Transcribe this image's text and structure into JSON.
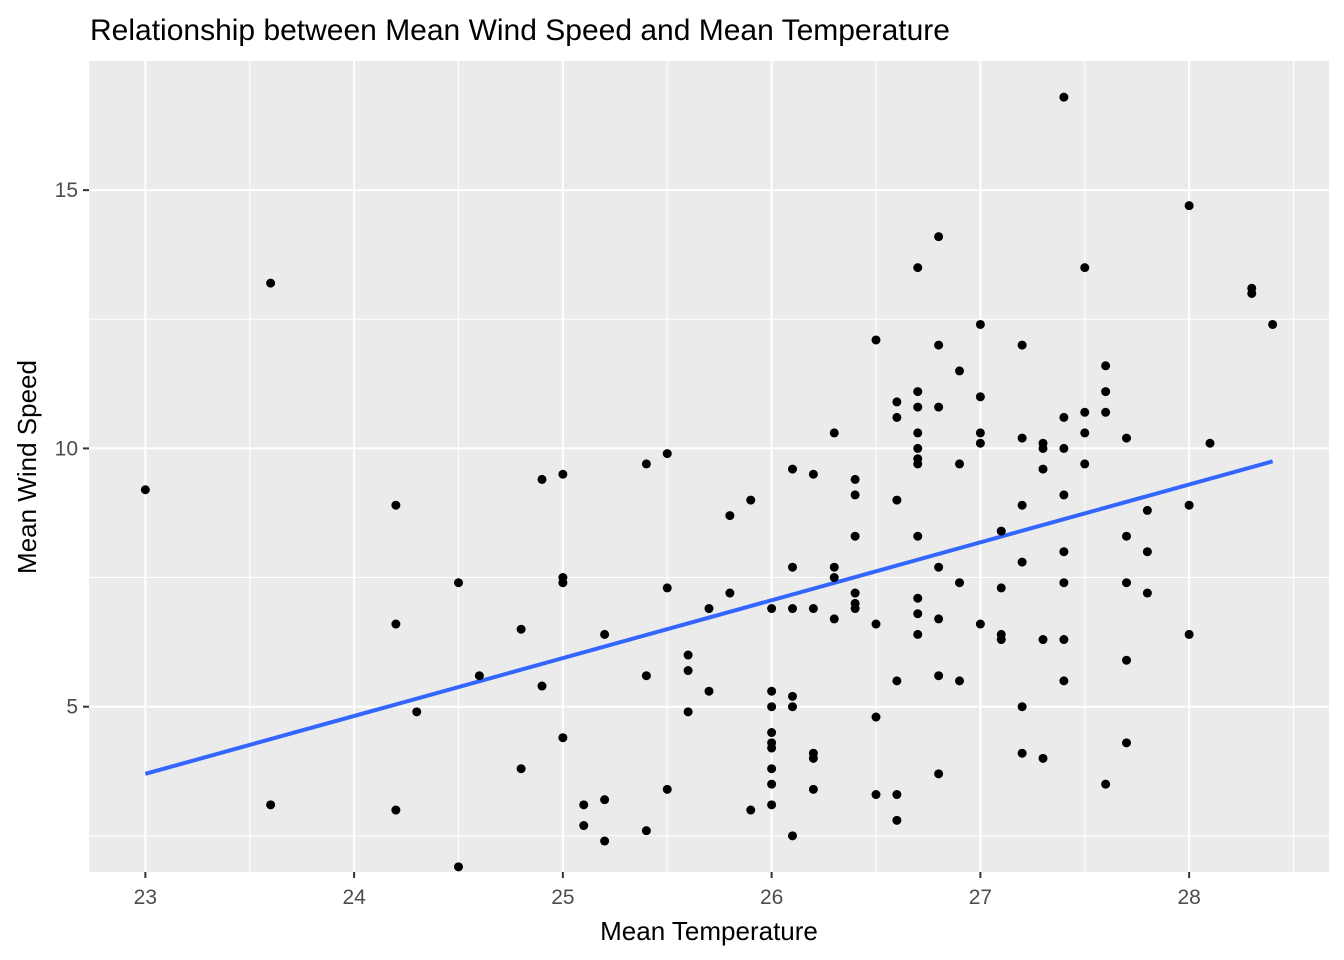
{
  "chart_data": {
    "type": "scatter",
    "title": "Relationship between Mean Wind Speed and Mean Temperature",
    "xlabel": "Mean Temperature",
    "ylabel": "Mean Wind Speed",
    "xlim": [
      22.73,
      28.67
    ],
    "ylim": [
      1.8,
      17.5
    ],
    "x_ticks": [
      23,
      24,
      25,
      26,
      27,
      28
    ],
    "y_ticks": [
      5,
      10,
      15
    ],
    "x_tick_labels": [
      "23",
      "24",
      "25",
      "26",
      "27",
      "28"
    ],
    "y_tick_labels": [
      "5",
      "10",
      "15"
    ],
    "grid": true,
    "legend": "none",
    "colors": {
      "panel": "#ebebeb",
      "grid": "#ffffff",
      "points": "#000000",
      "trend_line": "#3366ff"
    },
    "points": [
      [
        23.0,
        9.2
      ],
      [
        23.6,
        13.2
      ],
      [
        23.6,
        3.1
      ],
      [
        24.2,
        8.9
      ],
      [
        24.2,
        6.6
      ],
      [
        24.2,
        3.0
      ],
      [
        24.3,
        4.9
      ],
      [
        24.5,
        7.4
      ],
      [
        24.5,
        1.9
      ],
      [
        24.6,
        5.6
      ],
      [
        24.8,
        6.5
      ],
      [
        24.8,
        3.8
      ],
      [
        24.9,
        9.4
      ],
      [
        24.9,
        5.4
      ],
      [
        25.0,
        9.5
      ],
      [
        25.0,
        7.5
      ],
      [
        25.0,
        7.4
      ],
      [
        25.0,
        4.4
      ],
      [
        25.1,
        3.1
      ],
      [
        25.1,
        2.7
      ],
      [
        25.2,
        6.4
      ],
      [
        25.2,
        3.2
      ],
      [
        25.2,
        2.4
      ],
      [
        25.4,
        9.7
      ],
      [
        25.4,
        5.6
      ],
      [
        25.4,
        2.6
      ],
      [
        25.5,
        9.9
      ],
      [
        25.5,
        7.3
      ],
      [
        25.5,
        3.4
      ],
      [
        25.6,
        6.0
      ],
      [
        25.6,
        5.7
      ],
      [
        25.6,
        4.9
      ],
      [
        25.7,
        6.9
      ],
      [
        25.7,
        5.3
      ],
      [
        25.8,
        8.7
      ],
      [
        25.8,
        7.2
      ],
      [
        25.9,
        9.0
      ],
      [
        25.9,
        3.0
      ],
      [
        26.0,
        6.9
      ],
      [
        26.0,
        5.3
      ],
      [
        26.0,
        5.0
      ],
      [
        26.0,
        4.5
      ],
      [
        26.0,
        4.3
      ],
      [
        26.0,
        4.2
      ],
      [
        26.0,
        3.8
      ],
      [
        26.0,
        3.5
      ],
      [
        26.0,
        3.1
      ],
      [
        26.1,
        9.6
      ],
      [
        26.1,
        7.7
      ],
      [
        26.1,
        6.9
      ],
      [
        26.1,
        5.2
      ],
      [
        26.1,
        5.0
      ],
      [
        26.1,
        2.5
      ],
      [
        26.2,
        9.5
      ],
      [
        26.2,
        6.9
      ],
      [
        26.2,
        4.1
      ],
      [
        26.2,
        4.0
      ],
      [
        26.2,
        3.4
      ],
      [
        26.3,
        10.3
      ],
      [
        26.3,
        7.7
      ],
      [
        26.3,
        7.5
      ],
      [
        26.3,
        6.7
      ],
      [
        26.4,
        9.4
      ],
      [
        26.4,
        9.1
      ],
      [
        26.4,
        8.3
      ],
      [
        26.4,
        7.2
      ],
      [
        26.4,
        7.0
      ],
      [
        26.4,
        6.9
      ],
      [
        26.5,
        12.1
      ],
      [
        26.5,
        6.6
      ],
      [
        26.5,
        4.8
      ],
      [
        26.5,
        3.3
      ],
      [
        26.6,
        10.9
      ],
      [
        26.6,
        10.6
      ],
      [
        26.6,
        9.0
      ],
      [
        26.6,
        5.5
      ],
      [
        26.6,
        3.3
      ],
      [
        26.6,
        2.8
      ],
      [
        26.7,
        13.5
      ],
      [
        26.7,
        11.1
      ],
      [
        26.7,
        10.8
      ],
      [
        26.7,
        10.3
      ],
      [
        26.7,
        10.0
      ],
      [
        26.7,
        9.8
      ],
      [
        26.7,
        9.7
      ],
      [
        26.7,
        8.3
      ],
      [
        26.7,
        7.1
      ],
      [
        26.7,
        6.8
      ],
      [
        26.7,
        6.4
      ],
      [
        26.8,
        14.1
      ],
      [
        26.8,
        12.0
      ],
      [
        26.8,
        10.8
      ],
      [
        26.8,
        7.7
      ],
      [
        26.8,
        6.7
      ],
      [
        26.8,
        5.6
      ],
      [
        26.8,
        3.7
      ],
      [
        26.9,
        11.5
      ],
      [
        26.9,
        9.7
      ],
      [
        26.9,
        7.4
      ],
      [
        26.9,
        5.5
      ],
      [
        27.0,
        12.4
      ],
      [
        27.0,
        11.0
      ],
      [
        27.0,
        10.3
      ],
      [
        27.0,
        10.1
      ],
      [
        27.0,
        6.6
      ],
      [
        27.1,
        8.4
      ],
      [
        27.1,
        7.3
      ],
      [
        27.1,
        6.4
      ],
      [
        27.1,
        6.3
      ],
      [
        27.2,
        12.0
      ],
      [
        27.2,
        10.2
      ],
      [
        27.2,
        8.9
      ],
      [
        27.2,
        7.8
      ],
      [
        27.2,
        5.0
      ],
      [
        27.2,
        4.1
      ],
      [
        27.3,
        10.1
      ],
      [
        27.3,
        10.0
      ],
      [
        27.3,
        9.6
      ],
      [
        27.3,
        6.3
      ],
      [
        27.3,
        4.0
      ],
      [
        27.4,
        16.8
      ],
      [
        27.4,
        10.6
      ],
      [
        27.4,
        10.0
      ],
      [
        27.4,
        9.1
      ],
      [
        27.4,
        8.0
      ],
      [
        27.4,
        7.4
      ],
      [
        27.4,
        6.3
      ],
      [
        27.4,
        5.5
      ],
      [
        27.5,
        13.5
      ],
      [
        27.5,
        10.7
      ],
      [
        27.5,
        10.3
      ],
      [
        27.5,
        9.7
      ],
      [
        27.6,
        11.6
      ],
      [
        27.6,
        11.1
      ],
      [
        27.6,
        10.7
      ],
      [
        27.6,
        3.5
      ],
      [
        27.7,
        10.2
      ],
      [
        27.7,
        8.3
      ],
      [
        27.7,
        7.4
      ],
      [
        27.7,
        5.9
      ],
      [
        27.7,
        4.3
      ],
      [
        27.8,
        8.8
      ],
      [
        27.8,
        8.0
      ],
      [
        27.8,
        7.2
      ],
      [
        28.0,
        14.7
      ],
      [
        28.0,
        8.9
      ],
      [
        28.0,
        6.4
      ],
      [
        28.1,
        10.1
      ],
      [
        28.3,
        13.1
      ],
      [
        28.3,
        13.0
      ],
      [
        28.4,
        12.4
      ]
    ],
    "trend_line": {
      "method": "linear fit",
      "x": [
        23.0,
        28.4
      ],
      "y": [
        3.7,
        9.75
      ]
    }
  }
}
